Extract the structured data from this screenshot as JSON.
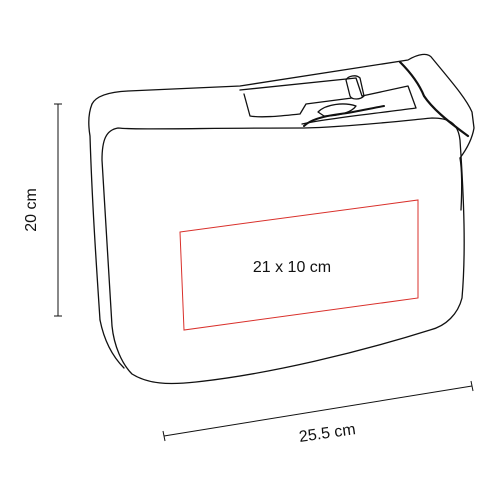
{
  "dimensions": {
    "height_label": "20 cm",
    "width_label": "25.5 cm",
    "print_area_label": "21 x 10 cm"
  },
  "colors": {
    "outline": "#111111",
    "print_area": "#d9302b",
    "background": "#ffffff"
  }
}
